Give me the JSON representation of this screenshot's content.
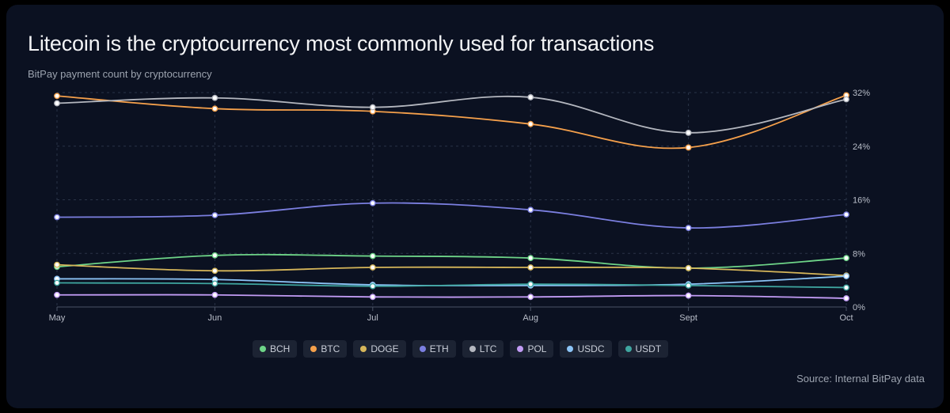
{
  "header": {
    "title": "Litecoin is the cryptocurrency most commonly used for transactions",
    "subtitle": "BitPay payment count by cryptocurrency"
  },
  "footer": {
    "source": "Source: Internal BitPay data"
  },
  "chart_data": {
    "type": "line",
    "title": "Litecoin is the cryptocurrency most commonly used for transactions",
    "subtitle": "BitPay payment count by cryptocurrency",
    "xlabel": "",
    "ylabel": "",
    "categories": [
      "May",
      "Jun",
      "Jul",
      "Aug",
      "Sept",
      "Oct"
    ],
    "ylim": [
      0,
      32
    ],
    "yticks": [
      0,
      8,
      16,
      24,
      32
    ],
    "ytick_labels": [
      "0%",
      "8%",
      "16%",
      "24%",
      "32%"
    ],
    "grid": true,
    "y_axis_position": "right",
    "legend_position": "bottom-center",
    "series": [
      {
        "name": "BCH",
        "color": "#6ed488",
        "values": [
          6.0,
          7.7,
          7.6,
          7.3,
          5.8,
          7.3
        ]
      },
      {
        "name": "BTC",
        "color": "#f5a04b",
        "values": [
          31.5,
          29.6,
          29.2,
          27.3,
          23.8,
          31.6
        ]
      },
      {
        "name": "DOGE",
        "color": "#d6b65a",
        "values": [
          6.3,
          5.4,
          5.9,
          5.9,
          5.8,
          4.7
        ]
      },
      {
        "name": "ETH",
        "color": "#7b7fe0",
        "values": [
          13.4,
          13.7,
          15.5,
          14.5,
          11.8,
          13.8
        ]
      },
      {
        "name": "LTC",
        "color": "#b4b7bf",
        "values": [
          30.4,
          31.2,
          29.8,
          31.3,
          26.0,
          31.0
        ]
      },
      {
        "name": "POL",
        "color": "#c29cf5",
        "values": [
          1.8,
          1.8,
          1.5,
          1.5,
          1.7,
          1.3
        ]
      },
      {
        "name": "USDC",
        "color": "#8cc4f7",
        "values": [
          4.2,
          4.1,
          3.3,
          3.2,
          3.4,
          4.6
        ]
      },
      {
        "name": "USDT",
        "color": "#3fa6a0",
        "values": [
          3.6,
          3.5,
          3.1,
          3.4,
          3.2,
          2.9
        ]
      }
    ]
  }
}
